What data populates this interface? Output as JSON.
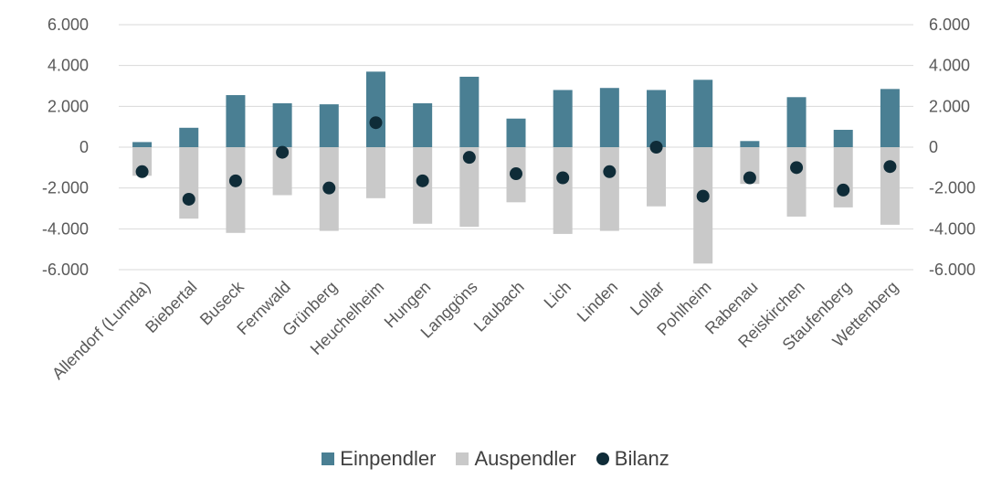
{
  "chart_data": {
    "type": "bar",
    "categories": [
      "Allendorf (Lumda)",
      "Biebertal",
      "Buseck",
      "Fernwald",
      "Grünberg",
      "Heuchelheim",
      "Hungen",
      "Langgöns",
      "Laubach",
      "Lich",
      "Linden",
      "Lollar",
      "Pohlheim",
      "Rabenau",
      "Reiskirchen",
      "Staufenberg",
      "Wettenberg"
    ],
    "series": [
      {
        "name": "Einpendler",
        "kind": "bar",
        "color": "#4a7f93",
        "values": [
          250,
          950,
          2550,
          2150,
          2100,
          3700,
          2150,
          3450,
          1400,
          2800,
          2900,
          2800,
          3300,
          300,
          2450,
          850,
          2850
        ]
      },
      {
        "name": "Auspendler",
        "kind": "bar",
        "color": "#c9c9c9",
        "values": [
          -1400,
          -3500,
          -4200,
          -2350,
          -4100,
          -2500,
          -3750,
          -3900,
          -2700,
          -4250,
          -4100,
          -2900,
          -5700,
          -1800,
          -3400,
          -2950,
          -3800
        ]
      },
      {
        "name": "Bilanz",
        "kind": "dot",
        "color": "#0f2c38",
        "values": [
          -1200,
          -2550,
          -1650,
          -250,
          -2000,
          1200,
          -1650,
          -500,
          -1300,
          -1500,
          -1200,
          0,
          -2400,
          -1500,
          -1000,
          -2100,
          -950
        ]
      }
    ],
    "ylim": [
      -6000,
      6000
    ],
    "yticks": [
      "-6.000",
      "-4.000",
      "-2.000",
      "0",
      "2.000",
      "4.000",
      "6.000"
    ],
    "ytick_values": [
      -6000,
      -4000,
      -2000,
      0,
      2000,
      4000,
      6000
    ],
    "grid": true,
    "legend_position": "bottom"
  },
  "legend": {
    "einpendler": "Einpendler",
    "auspendler": "Auspendler",
    "bilanz": "Bilanz"
  }
}
